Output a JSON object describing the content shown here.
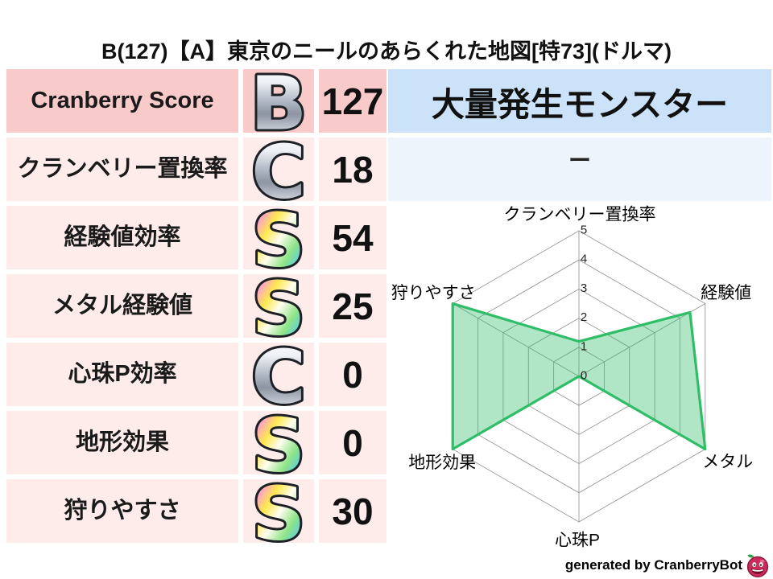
{
  "title": "B(127)【A】東京のニールのあらくれた地図[特73](ドルマ)",
  "colors": {
    "row_strong_bg": "#f9caca",
    "row_bg": "#fdecea",
    "monster_header_bg": "#cbe2f8",
    "monster_value_bg": "#edf4fb",
    "radar_line": "#2fbd68",
    "radar_fill": "rgba(47,189,104,0.38)",
    "grid": "#9a9a9a",
    "grade_silver": [
      "#ffffff",
      "#eef1f5",
      "#a9b1be",
      "#8d95a2",
      "#d5dae2",
      "#f2f4f7"
    ],
    "grade_rainbow": [
      "#ff6ad5",
      "#ff9ad6",
      "#ffe84f",
      "#fffdf0",
      "#8fe487",
      "#53c9f0",
      "#7d6bf0"
    ]
  },
  "table": {
    "rows": [
      {
        "label": "Cranberry Score",
        "grade": "B",
        "grade_style": "silver",
        "value": "127",
        "emphasis": true
      },
      {
        "label": "クランベリー置換率",
        "grade": "C",
        "grade_style": "silver",
        "value": "18",
        "emphasis": false
      },
      {
        "label": "経験値効率",
        "grade": "S",
        "grade_style": "rainbow",
        "value": "54",
        "emphasis": false
      },
      {
        "label": "メタル経験値",
        "grade": "S",
        "grade_style": "rainbow",
        "value": "25",
        "emphasis": false
      },
      {
        "label": "心珠P効率",
        "grade": "C",
        "grade_style": "silver",
        "value": "0",
        "emphasis": false
      },
      {
        "label": "地形効果",
        "grade": "S",
        "grade_style": "rainbow",
        "value": "0",
        "emphasis": false
      },
      {
        "label": "狩りやすさ",
        "grade": "S",
        "grade_style": "rainbow",
        "value": "30",
        "emphasis": false
      }
    ]
  },
  "monster_panel": {
    "title": "大量発生モンスター",
    "value": "ー"
  },
  "chart_data": {
    "type": "radar",
    "axes": [
      "クランベリー置換率",
      "経験値",
      "メタル",
      "心珠P",
      "地形効果",
      "狩りやすさ"
    ],
    "values": [
      1.2,
      4.4,
      5,
      0,
      5,
      5
    ],
    "ticks": [
      0,
      1,
      2,
      3,
      4,
      5
    ],
    "range": [
      0,
      5
    ],
    "grid_shape": "hexagon",
    "grid": true,
    "legend": false,
    "title": ""
  },
  "footer": {
    "credit": "generated by CranberryBot"
  }
}
